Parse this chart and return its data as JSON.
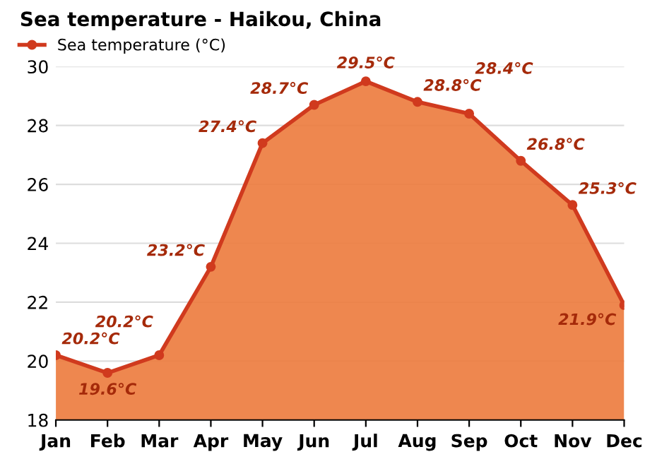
{
  "chart_data": {
    "type": "area",
    "title": "Sea temperature - Haikou, China",
    "categories": [
      "Jan",
      "Feb",
      "Mar",
      "Apr",
      "May",
      "Jun",
      "Jul",
      "Aug",
      "Sep",
      "Oct",
      "Nov",
      "Dec"
    ],
    "series": [
      {
        "name": "Sea temperature (°C)",
        "color": "#d03a1e",
        "values": [
          20.2,
          19.6,
          20.2,
          23.2,
          27.4,
          28.7,
          29.5,
          28.8,
          28.4,
          26.8,
          25.3,
          21.9
        ],
        "value_labels": [
          "20.2°C",
          "19.6°C",
          "20.2°C",
          "23.2°C",
          "27.4°C",
          "28.7°C",
          "29.5°C",
          "28.8°C",
          "28.4°C",
          "26.8°C",
          "25.3°C",
          "21.9°C"
        ]
      }
    ],
    "ylim": [
      18,
      30
    ],
    "yticks": [
      18,
      20,
      22,
      24,
      26,
      28,
      30
    ],
    "grid": "y",
    "legend": "top left",
    "marker": "circle",
    "line_style": "solid"
  }
}
